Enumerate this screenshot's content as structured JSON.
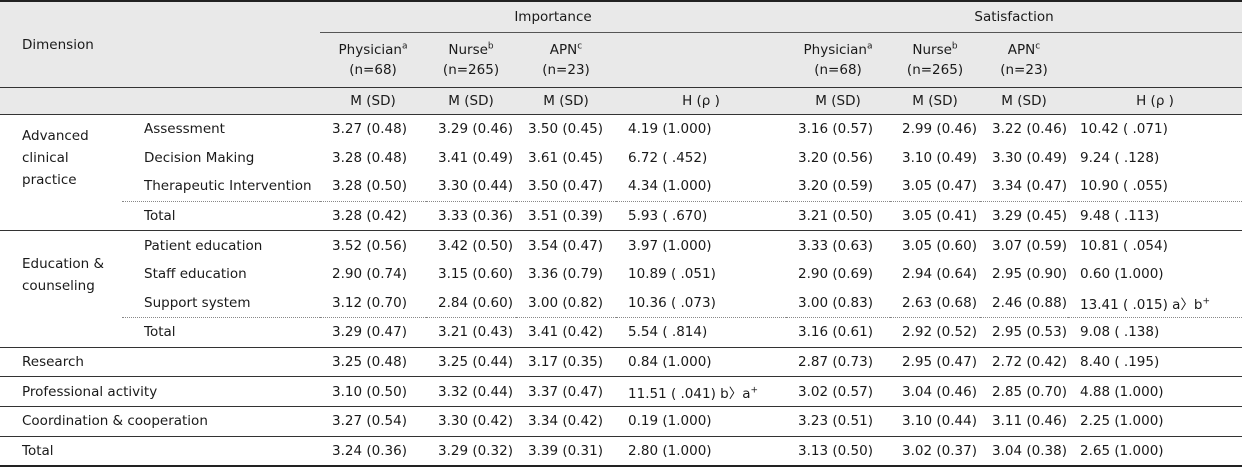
{
  "header": {
    "dimension": "Dimension",
    "importance": "Importance",
    "satisfaction": "Satisfaction",
    "groups": [
      {
        "name": "Physician",
        "sup": "a",
        "n": "(n=68)"
      },
      {
        "name": "Nurse",
        "sup": "b",
        "n": "(n=265)"
      },
      {
        "name": "APN",
        "sup": "c",
        "n": "(n=23)"
      }
    ],
    "msd": "M  (SD)",
    "h": "H  (ρ )"
  },
  "rows": [
    {
      "dim": "Advanced clinical practice",
      "sub": "Assessment",
      "imp": [
        "3.27  (0.48)",
        "3.29  (0.46)",
        "3.50  (0.45)",
        "4.19  (1.000)"
      ],
      "sat": [
        "3.16  (0.57)",
        "2.99  (0.46)",
        "3.22  (0.46)",
        "10.42  ( .071)"
      ]
    },
    {
      "sub": "Decision Making",
      "imp": [
        "3.28  (0.48)",
        "3.41  (0.49)",
        "3.61  (0.45)",
        "6.72  (  .452)"
      ],
      "sat": [
        "3.20  (0.56)",
        "3.10  (0.49)",
        "3.30  (0.49)",
        "9.24  ( .128)"
      ]
    },
    {
      "sub": "Therapeutic  Intervention",
      "imp": [
        "3.28  (0.50)",
        "3.30  (0.44)",
        "3.50  (0.47)",
        "4.34  (1.000)"
      ],
      "sat": [
        "3.20  (0.59)",
        "3.05  (0.47)",
        "3.34  (0.47)",
        "10.90  ( .055)"
      ]
    },
    {
      "sub": "Total",
      "imp": [
        "3.28  (0.42)",
        "3.33  (0.36)",
        "3.51  (0.39)",
        "5.93  (  .670)"
      ],
      "sat": [
        "3.21  (0.50)",
        "3.05  (0.41)",
        "3.29  (0.45)",
        "9.48  ( .113)"
      ]
    },
    {
      "dim": "Education  &  counseling",
      "sub": "Patient  education",
      "imp": [
        "3.52  (0.56)",
        "3.42  (0.50)",
        "3.54  (0.47)",
        "3.97  (1.000)"
      ],
      "sat": [
        "3.33  (0.63)",
        "3.05  (0.60)",
        "3.07  (0.59)",
        "10.81  ( .054)"
      ]
    },
    {
      "sub": "Staff  education",
      "imp": [
        "2.90  (0.74)",
        "3.15  (0.60)",
        "3.36  (0.79)",
        "10.89  ( .051)"
      ],
      "sat": [
        "2.90  (0.69)",
        "2.94  (0.64)",
        "2.95  (0.90)",
        "0.60  (1.000)"
      ]
    },
    {
      "sub": "Support  system",
      "imp": [
        "3.12  (0.70)",
        "2.84  (0.60)",
        "3.00  (0.82)",
        "10.36  ( .073)"
      ],
      "sat": [
        "3.00  (0.83)",
        "2.63  (0.68)",
        "2.46  (0.88)",
        "13.41  ( .015)  a〉b"
      ],
      "sat_sup": "+"
    },
    {
      "sub": "Total",
      "imp": [
        "3.29  (0.47)",
        "3.21  (0.43)",
        "3.41  (0.42)",
        "5.54  (  .814)"
      ],
      "sat": [
        "3.16  (0.61)",
        "2.92  (0.52)",
        "2.95  (0.53)",
        "9.08  ( .138)"
      ]
    },
    {
      "dim": "Research",
      "imp": [
        "3.25  (0.48)",
        "3.25  (0.44)",
        "3.17  (0.35)",
        "0.84  (1.000)"
      ],
      "sat": [
        "2.87  (0.73)",
        "2.95  (0.47)",
        "2.72  (0.42)",
        "8.40  ( .195)"
      ]
    },
    {
      "dim": "Professional  activity",
      "imp": [
        "3.10  (0.50)",
        "3.32  (0.44)",
        "3.37  (0.47)",
        "11.51  (  .041)  b〉a"
      ],
      "imp_sup": "+",
      "sat": [
        "3.02  (0.57)",
        "3.04  (0.46)",
        "2.85  (0.70)",
        "4.88  (1.000)"
      ]
    },
    {
      "dim": "Coordination  &  cooperation",
      "imp": [
        "3.27  (0.54)",
        "3.30  (0.42)",
        "3.34  (0.42)",
        "0.19  (1.000)"
      ],
      "sat": [
        "3.23  (0.51)",
        "3.10  (0.44)",
        "3.11  (0.46)",
        "2.25  (1.000)"
      ]
    },
    {
      "dim": "Total",
      "imp": [
        "3.24  (0.36)",
        "3.29  (0.32)",
        "3.39  (0.31)",
        "2.80  (1.000)"
      ],
      "sat": [
        "3.13  (0.50)",
        "3.02  (0.37)",
        "3.04  (0.38)",
        "2.65  (1.000)"
      ]
    }
  ]
}
